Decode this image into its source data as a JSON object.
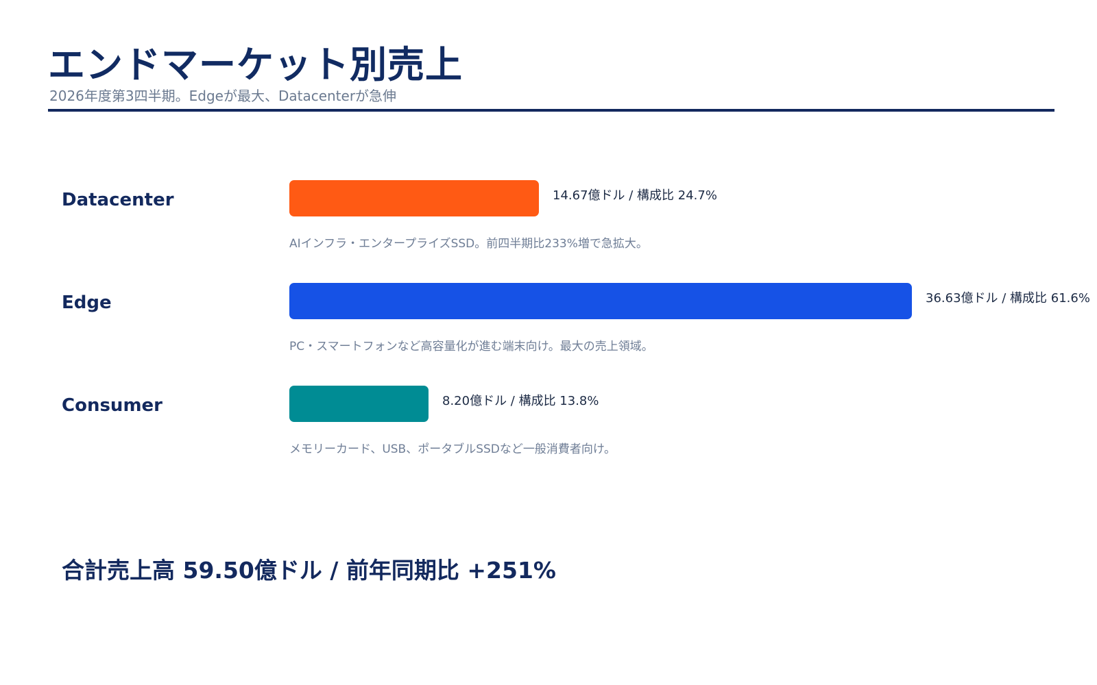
{
  "title": "エンドマーケット別売上",
  "subtitle": "2026年度第3四半期。Edgeが最大、Datacenterが急伸",
  "total_text": "合計売上高 59.50億ドル / 前年同期比 +251%",
  "colors": {
    "navy": "#13295e",
    "datacenter": "#ff5a14",
    "edge": "#1652e6",
    "consumer": "#008c94"
  },
  "chart_data": {
    "type": "bar",
    "orientation": "horizontal",
    "unit": "億ドル",
    "categories": [
      "Datacenter",
      "Edge",
      "Consumer"
    ],
    "values": [
      14.67,
      36.63,
      8.2
    ],
    "share_percent": [
      24.7,
      61.6,
      13.8
    ],
    "bars": [
      {
        "label": "Datacenter",
        "value": 14.67,
        "value_text": "14.67億ドル / 構成比 24.7%",
        "description": "AIインフラ・エンタープライズSSD。前四半期比233%増で急拡大。",
        "color": "#ff5a14"
      },
      {
        "label": "Edge",
        "value": 36.63,
        "value_text": "36.63億ドル / 構成比 61.6%",
        "description": "PC・スマートフォンなど高容量化が進む端末向け。最大の売上領域。",
        "color": "#1652e6"
      },
      {
        "label": "Consumer",
        "value": 8.2,
        "value_text": "8.20億ドル / 構成比 13.8%",
        "description": "メモリーカード、USB、ポータブルSSDなど一般消費者向け。",
        "color": "#008c94"
      }
    ],
    "grid": false,
    "legend": "none"
  }
}
